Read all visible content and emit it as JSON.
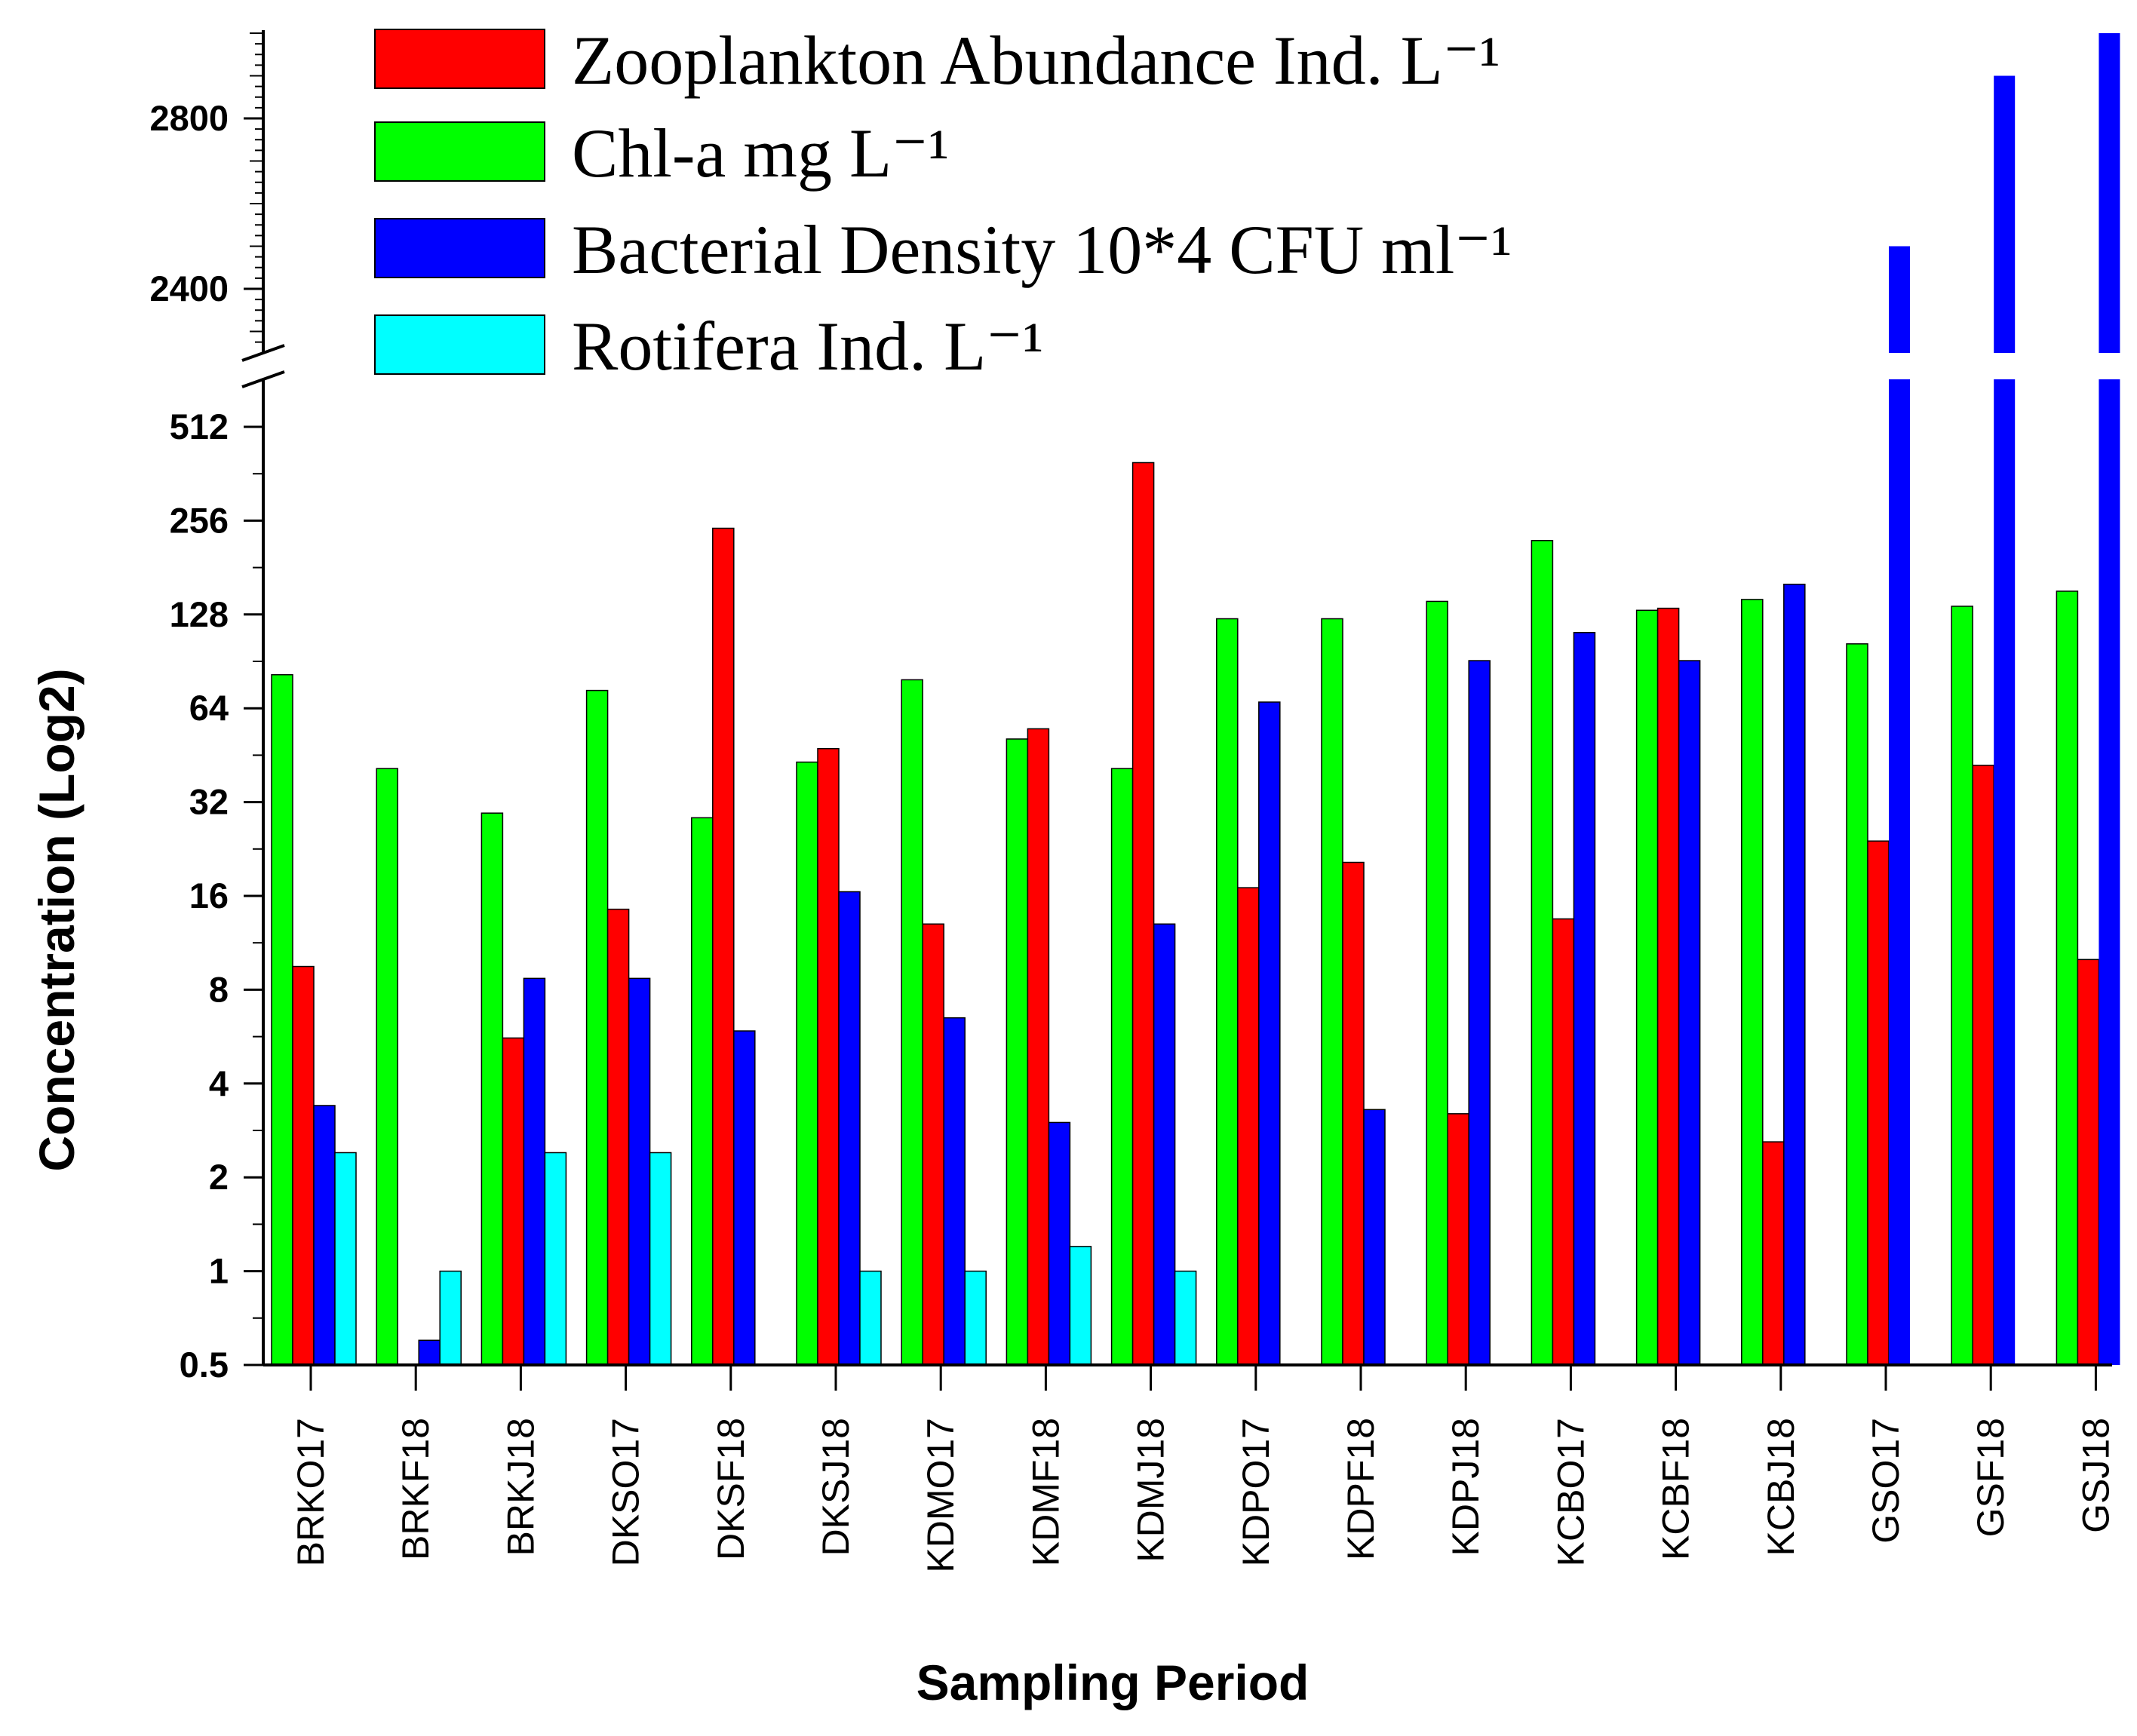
{
  "chart_data": {
    "type": "bar",
    "title": "",
    "xlabel": "Sampling Period",
    "ylabel": "Concentration (Log2)",
    "yscale": "log2 (broken axis)",
    "lower_ylim": [
      0.5,
      724
    ],
    "upper_ylim": [
      2250,
      3000
    ],
    "lower_ticks": [
      "0.5",
      "1",
      "2",
      "4",
      "8",
      "16",
      "32",
      "64",
      "128",
      "256",
      "512"
    ],
    "upper_ticks": [
      "2400",
      "2800"
    ],
    "legend_position": "top",
    "categories": [
      "BRKO17",
      "BRKF18",
      "BRKJ18",
      "DKSO17",
      "DKSF18",
      "DKSJ18",
      "KDMO17",
      "KDMF18",
      "KDMJ18",
      "KDPO17",
      "KDPF18",
      "KDPJ18",
      "KCBO17",
      "KCBF18",
      "KCBJ18",
      "GSO17",
      "GSF18",
      "GSJ18"
    ],
    "series": [
      {
        "name": "Chl-a mg L⁻¹",
        "color": "#00ff00",
        "values": [
          82,
          41,
          29.5,
          73,
          28.5,
          43,
          79,
          51,
          41,
          124,
          124,
          141,
          221,
          132,
          143,
          103,
          136,
          152
        ]
      },
      {
        "name": "Zooplankton Abundance Ind. L⁻¹",
        "color": "#ff0000",
        "values": [
          9.5,
          0,
          5.6,
          14.5,
          242,
          47.5,
          13,
          55,
          393,
          17,
          20.5,
          3.2,
          13.5,
          134,
          2.6,
          24,
          42,
          10
        ]
      },
      {
        "name": "Bacterial Density 10*4 CFU ml⁻¹",
        "color": "#0000ff",
        "values": [
          3.4,
          0.6,
          8.7,
          8.7,
          5.9,
          16.5,
          6.5,
          3.0,
          13,
          67,
          3.3,
          91,
          112,
          91,
          160,
          2500,
          2900,
          3000
        ]
      },
      {
        "name": "Rotifera Ind. L⁻¹",
        "color": "#00ffff",
        "values": [
          2.4,
          1,
          2.4,
          2.4,
          0,
          1,
          1,
          1.2,
          1,
          0,
          0,
          0,
          0,
          0,
          0,
          0,
          0,
          0
        ]
      }
    ],
    "legend_entries": [
      {
        "label": "Zooplankton Abundance Ind. L⁻¹",
        "color": "#ff0000"
      },
      {
        "label": "Chl-a mg L⁻¹",
        "color": "#00ff00"
      },
      {
        "label": "Bacterial Density 10*4 CFU ml⁻¹",
        "color": "#0000ff"
      },
      {
        "label": "Rotifera Ind. L⁻¹",
        "color": "#00ffff"
      }
    ]
  }
}
